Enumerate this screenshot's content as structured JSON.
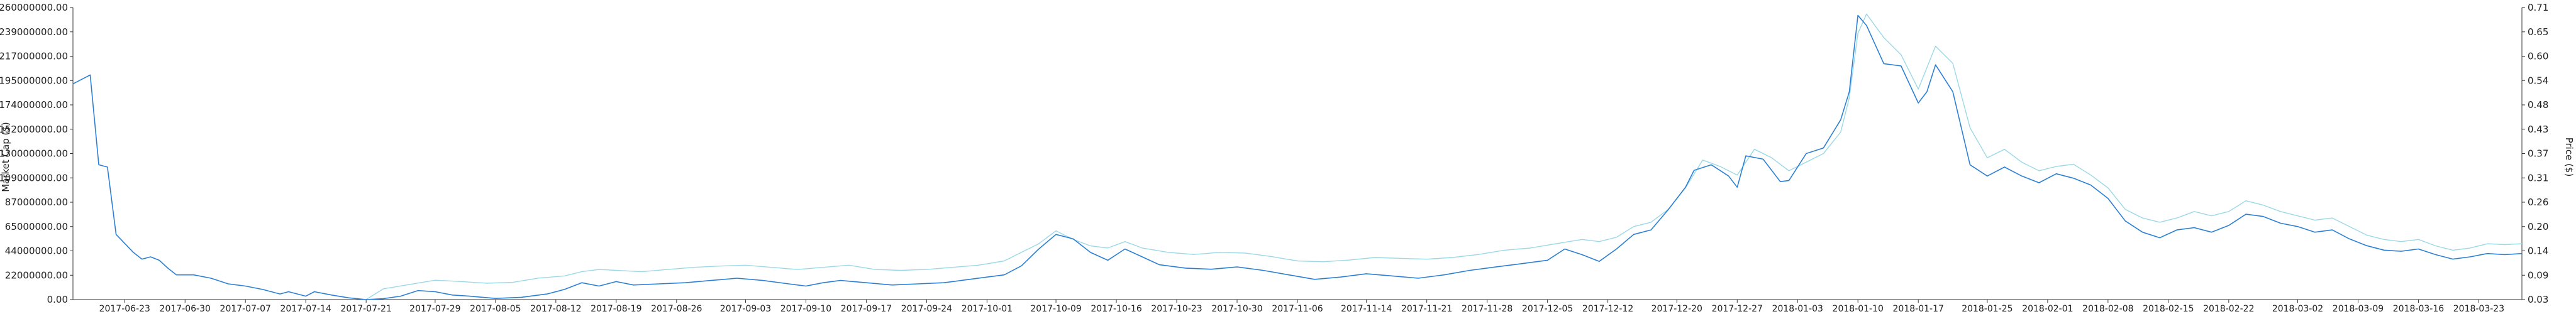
{
  "chart_data": {
    "type": "line",
    "title": "",
    "y_left_label": "Market Cap ($)",
    "y_right_label": "Price ($)",
    "ylim_left": [
      0,
      260000000
    ],
    "ylim_right": [
      0.03,
      0.71
    ],
    "y_left_ticks": [
      "0.00",
      "22000000.00",
      "44000000.00",
      "65000000.00",
      "87000000.00",
      "109000000.00",
      "130000000.00",
      "152000000.00",
      "174000000.00",
      "195000000.00",
      "217000000.00",
      "239000000.00",
      "260000000.00"
    ],
    "y_right_ticks": [
      "0.03",
      "0.09",
      "0.14",
      "0.20",
      "0.26",
      "0.31",
      "0.37",
      "0.43",
      "0.48",
      "0.54",
      "0.60",
      "0.65",
      "0.71"
    ],
    "x_ticks": [
      "2017-06-23",
      "2017-06-30",
      "2017-07-07",
      "2017-07-14",
      "2017-07-21",
      "2017-07-29",
      "2017-08-05",
      "2017-08-12",
      "2017-08-19",
      "2017-08-26",
      "2017-09-03",
      "2017-09-10",
      "2017-09-17",
      "2017-09-24",
      "2017-10-01",
      "2017-10-09",
      "2017-10-16",
      "2017-10-23",
      "2017-10-30",
      "2017-11-06",
      "2017-11-14",
      "2017-11-21",
      "2017-11-28",
      "2017-12-05",
      "2017-12-12",
      "2017-12-20",
      "2017-12-27",
      "2018-01-03",
      "2018-01-10",
      "2018-01-17",
      "2018-01-25",
      "2018-02-01",
      "2018-02-08",
      "2018-02-15",
      "2018-02-22",
      "2018-03-02",
      "2018-03-09",
      "2018-03-16",
      "2018-03-23"
    ],
    "x_range": [
      "2017-06-17",
      "2018-03-28"
    ],
    "grid": false,
    "legend": "none",
    "series": [
      {
        "axis": "left",
        "color": "#2a7fd4",
        "points": [
          [
            "2017-06-17",
            192000000
          ],
          [
            "2017-06-19",
            200000000
          ],
          [
            "2017-06-20",
            120000000
          ],
          [
            "2017-06-21",
            118000000
          ],
          [
            "2017-06-22",
            58000000
          ],
          [
            "2017-06-24",
            42000000
          ],
          [
            "2017-06-25",
            36000000
          ],
          [
            "2017-06-26",
            38000000
          ],
          [
            "2017-06-27",
            35000000
          ],
          [
            "2017-06-28",
            28000000
          ],
          [
            "2017-06-29",
            22000000
          ],
          [
            "2017-07-01",
            22000000
          ],
          [
            "2017-07-03",
            19000000
          ],
          [
            "2017-07-05",
            14000000
          ],
          [
            "2017-07-07",
            12000000
          ],
          [
            "2017-07-09",
            9000000
          ],
          [
            "2017-07-11",
            5000000
          ],
          [
            "2017-07-12",
            7000000
          ],
          [
            "2017-07-14",
            3000000
          ],
          [
            "2017-07-15",
            7000000
          ],
          [
            "2017-07-17",
            4000000
          ],
          [
            "2017-07-19",
            1500000
          ],
          [
            "2017-07-21",
            0
          ],
          [
            "2017-07-23",
            800000
          ],
          [
            "2017-07-25",
            3000000
          ],
          [
            "2017-07-27",
            8000000
          ],
          [
            "2017-07-29",
            7000000
          ],
          [
            "2017-07-31",
            4000000
          ],
          [
            "2017-08-02",
            3000000
          ],
          [
            "2017-08-05",
            1000000
          ],
          [
            "2017-08-08",
            2000000
          ],
          [
            "2017-08-11",
            5000000
          ],
          [
            "2017-08-13",
            9000000
          ],
          [
            "2017-08-15",
            15000000
          ],
          [
            "2017-08-17",
            12000000
          ],
          [
            "2017-08-19",
            16000000
          ],
          [
            "2017-08-21",
            13000000
          ],
          [
            "2017-08-24",
            14000000
          ],
          [
            "2017-08-27",
            15000000
          ],
          [
            "2017-08-30",
            17000000
          ],
          [
            "2017-09-02",
            19000000
          ],
          [
            "2017-09-05",
            17000000
          ],
          [
            "2017-09-08",
            14000000
          ],
          [
            "2017-09-10",
            12000000
          ],
          [
            "2017-09-12",
            15000000
          ],
          [
            "2017-09-14",
            17000000
          ],
          [
            "2017-09-17",
            15000000
          ],
          [
            "2017-09-20",
            13000000
          ],
          [
            "2017-09-23",
            14000000
          ],
          [
            "2017-09-26",
            15000000
          ],
          [
            "2017-09-28",
            17000000
          ],
          [
            "2017-10-01",
            20000000
          ],
          [
            "2017-10-03",
            22000000
          ],
          [
            "2017-10-05",
            30000000
          ],
          [
            "2017-10-07",
            45000000
          ],
          [
            "2017-10-09",
            58000000
          ],
          [
            "2017-10-11",
            54000000
          ],
          [
            "2017-10-13",
            42000000
          ],
          [
            "2017-10-15",
            35000000
          ],
          [
            "2017-10-17",
            45000000
          ],
          [
            "2017-10-19",
            38000000
          ],
          [
            "2017-10-21",
            31000000
          ],
          [
            "2017-10-24",
            28000000
          ],
          [
            "2017-10-27",
            27000000
          ],
          [
            "2017-10-30",
            29000000
          ],
          [
            "2017-11-02",
            26000000
          ],
          [
            "2017-11-05",
            22000000
          ],
          [
            "2017-11-08",
            18000000
          ],
          [
            "2017-11-11",
            20000000
          ],
          [
            "2017-11-14",
            23000000
          ],
          [
            "2017-11-17",
            21000000
          ],
          [
            "2017-11-20",
            19000000
          ],
          [
            "2017-11-23",
            22000000
          ],
          [
            "2017-11-26",
            26000000
          ],
          [
            "2017-11-29",
            29000000
          ],
          [
            "2017-12-02",
            32000000
          ],
          [
            "2017-12-05",
            35000000
          ],
          [
            "2017-12-07",
            45000000
          ],
          [
            "2017-12-09",
            40000000
          ],
          [
            "2017-12-11",
            34000000
          ],
          [
            "2017-12-13",
            45000000
          ],
          [
            "2017-12-15",
            58000000
          ],
          [
            "2017-12-17",
            62000000
          ],
          [
            "2017-12-19",
            80000000
          ],
          [
            "2017-12-21",
            100000000
          ],
          [
            "2017-12-22",
            115000000
          ],
          [
            "2017-12-24",
            120000000
          ],
          [
            "2017-12-26",
            110000000
          ],
          [
            "2017-12-27",
            100000000
          ],
          [
            "2017-12-28",
            128000000
          ],
          [
            "2017-12-30",
            125000000
          ],
          [
            "2018-01-01",
            105000000
          ],
          [
            "2018-01-02",
            106000000
          ],
          [
            "2018-01-04",
            130000000
          ],
          [
            "2018-01-06",
            135000000
          ],
          [
            "2018-01-08",
            160000000
          ],
          [
            "2018-01-09",
            185000000
          ],
          [
            "2018-01-10",
            253000000
          ],
          [
            "2018-01-11",
            244000000
          ],
          [
            "2018-01-13",
            210000000
          ],
          [
            "2018-01-15",
            208000000
          ],
          [
            "2018-01-17",
            175000000
          ],
          [
            "2018-01-18",
            185000000
          ],
          [
            "2018-01-19",
            209000000
          ],
          [
            "2018-01-21",
            185000000
          ],
          [
            "2018-01-23",
            120000000
          ],
          [
            "2018-01-25",
            110000000
          ],
          [
            "2018-01-27",
            118000000
          ],
          [
            "2018-01-29",
            110000000
          ],
          [
            "2018-01-31",
            104000000
          ],
          [
            "2018-02-02",
            112000000
          ],
          [
            "2018-02-04",
            108000000
          ],
          [
            "2018-02-06",
            102000000
          ],
          [
            "2018-02-08",
            90000000
          ],
          [
            "2018-02-10",
            70000000
          ],
          [
            "2018-02-12",
            60000000
          ],
          [
            "2018-02-14",
            55000000
          ],
          [
            "2018-02-16",
            62000000
          ],
          [
            "2018-02-18",
            64000000
          ],
          [
            "2018-02-20",
            60000000
          ],
          [
            "2018-02-22",
            66000000
          ],
          [
            "2018-02-24",
            76000000
          ],
          [
            "2018-02-26",
            74000000
          ],
          [
            "2018-02-28",
            68000000
          ],
          [
            "2018-03-02",
            65000000
          ],
          [
            "2018-03-04",
            60000000
          ],
          [
            "2018-03-06",
            62000000
          ],
          [
            "2018-03-08",
            54000000
          ],
          [
            "2018-03-10",
            48000000
          ],
          [
            "2018-03-12",
            44000000
          ],
          [
            "2018-03-14",
            43000000
          ],
          [
            "2018-03-16",
            45000000
          ],
          [
            "2018-03-18",
            40000000
          ],
          [
            "2018-03-20",
            36000000
          ],
          [
            "2018-03-22",
            38000000
          ],
          [
            "2018-03-24",
            41000000
          ],
          [
            "2018-03-26",
            40000000
          ],
          [
            "2018-03-28",
            41000000
          ]
        ]
      },
      {
        "axis": "right",
        "color": "#9ad8e6",
        "points": [
          [
            "2017-07-21",
            0.03
          ],
          [
            "2017-07-23",
            0.055
          ],
          [
            "2017-07-26",
            0.065
          ],
          [
            "2017-07-29",
            0.075
          ],
          [
            "2017-08-01",
            0.072
          ],
          [
            "2017-08-04",
            0.068
          ],
          [
            "2017-08-07",
            0.07
          ],
          [
            "2017-08-10",
            0.08
          ],
          [
            "2017-08-13",
            0.085
          ],
          [
            "2017-08-15",
            0.095
          ],
          [
            "2017-08-17",
            0.1
          ],
          [
            "2017-08-19",
            0.098
          ],
          [
            "2017-08-22",
            0.095
          ],
          [
            "2017-08-25",
            0.1
          ],
          [
            "2017-08-28",
            0.105
          ],
          [
            "2017-08-31",
            0.108
          ],
          [
            "2017-09-03",
            0.11
          ],
          [
            "2017-09-06",
            0.105
          ],
          [
            "2017-09-09",
            0.1
          ],
          [
            "2017-09-12",
            0.105
          ],
          [
            "2017-09-15",
            0.11
          ],
          [
            "2017-09-18",
            0.1
          ],
          [
            "2017-09-21",
            0.098
          ],
          [
            "2017-09-24",
            0.1
          ],
          [
            "2017-09-27",
            0.105
          ],
          [
            "2017-09-30",
            0.11
          ],
          [
            "2017-10-03",
            0.12
          ],
          [
            "2017-10-05",
            0.14
          ],
          [
            "2017-10-07",
            0.16
          ],
          [
            "2017-10-09",
            0.19
          ],
          [
            "2017-10-11",
            0.17
          ],
          [
            "2017-10-13",
            0.155
          ],
          [
            "2017-10-15",
            0.15
          ],
          [
            "2017-10-17",
            0.165
          ],
          [
            "2017-10-19",
            0.15
          ],
          [
            "2017-10-22",
            0.14
          ],
          [
            "2017-10-25",
            0.135
          ],
          [
            "2017-10-28",
            0.14
          ],
          [
            "2017-10-31",
            0.138
          ],
          [
            "2017-11-03",
            0.13
          ],
          [
            "2017-11-06",
            0.12
          ],
          [
            "2017-11-09",
            0.118
          ],
          [
            "2017-11-12",
            0.122
          ],
          [
            "2017-11-15",
            0.128
          ],
          [
            "2017-11-18",
            0.126
          ],
          [
            "2017-11-21",
            0.124
          ],
          [
            "2017-11-24",
            0.128
          ],
          [
            "2017-11-27",
            0.135
          ],
          [
            "2017-11-30",
            0.145
          ],
          [
            "2017-12-03",
            0.15
          ],
          [
            "2017-12-06",
            0.16
          ],
          [
            "2017-12-09",
            0.17
          ],
          [
            "2017-12-11",
            0.165
          ],
          [
            "2017-12-13",
            0.175
          ],
          [
            "2017-12-15",
            0.2
          ],
          [
            "2017-12-17",
            0.21
          ],
          [
            "2017-12-19",
            0.24
          ],
          [
            "2017-12-21",
            0.29
          ],
          [
            "2017-12-23",
            0.355
          ],
          [
            "2017-12-25",
            0.34
          ],
          [
            "2017-12-27",
            0.32
          ],
          [
            "2017-12-29",
            0.38
          ],
          [
            "2017-12-31",
            0.36
          ],
          [
            "2018-01-02",
            0.33
          ],
          [
            "2018-01-04",
            0.35
          ],
          [
            "2018-01-06",
            0.37
          ],
          [
            "2018-01-08",
            0.42
          ],
          [
            "2018-01-09",
            0.5
          ],
          [
            "2018-01-10",
            0.65
          ],
          [
            "2018-01-11",
            0.695
          ],
          [
            "2018-01-13",
            0.64
          ],
          [
            "2018-01-15",
            0.6
          ],
          [
            "2018-01-17",
            0.52
          ],
          [
            "2018-01-18",
            0.57
          ],
          [
            "2018-01-19",
            0.62
          ],
          [
            "2018-01-21",
            0.58
          ],
          [
            "2018-01-23",
            0.43
          ],
          [
            "2018-01-25",
            0.36
          ],
          [
            "2018-01-27",
            0.38
          ],
          [
            "2018-01-29",
            0.35
          ],
          [
            "2018-01-31",
            0.33
          ],
          [
            "2018-02-02",
            0.34
          ],
          [
            "2018-02-04",
            0.345
          ],
          [
            "2018-02-06",
            0.32
          ],
          [
            "2018-02-08",
            0.29
          ],
          [
            "2018-02-10",
            0.24
          ],
          [
            "2018-02-12",
            0.22
          ],
          [
            "2018-02-14",
            0.21
          ],
          [
            "2018-02-16",
            0.22
          ],
          [
            "2018-02-18",
            0.235
          ],
          [
            "2018-02-20",
            0.225
          ],
          [
            "2018-02-22",
            0.235
          ],
          [
            "2018-02-24",
            0.26
          ],
          [
            "2018-02-26",
            0.25
          ],
          [
            "2018-02-28",
            0.235
          ],
          [
            "2018-03-02",
            0.225
          ],
          [
            "2018-03-04",
            0.215
          ],
          [
            "2018-03-06",
            0.22
          ],
          [
            "2018-03-08",
            0.2
          ],
          [
            "2018-03-10",
            0.18
          ],
          [
            "2018-03-12",
            0.17
          ],
          [
            "2018-03-14",
            0.165
          ],
          [
            "2018-03-16",
            0.17
          ],
          [
            "2018-03-18",
            0.155
          ],
          [
            "2018-03-20",
            0.145
          ],
          [
            "2018-03-22",
            0.15
          ],
          [
            "2018-03-24",
            0.16
          ],
          [
            "2018-03-26",
            0.158
          ],
          [
            "2018-03-28",
            0.16
          ]
        ]
      }
    ]
  }
}
